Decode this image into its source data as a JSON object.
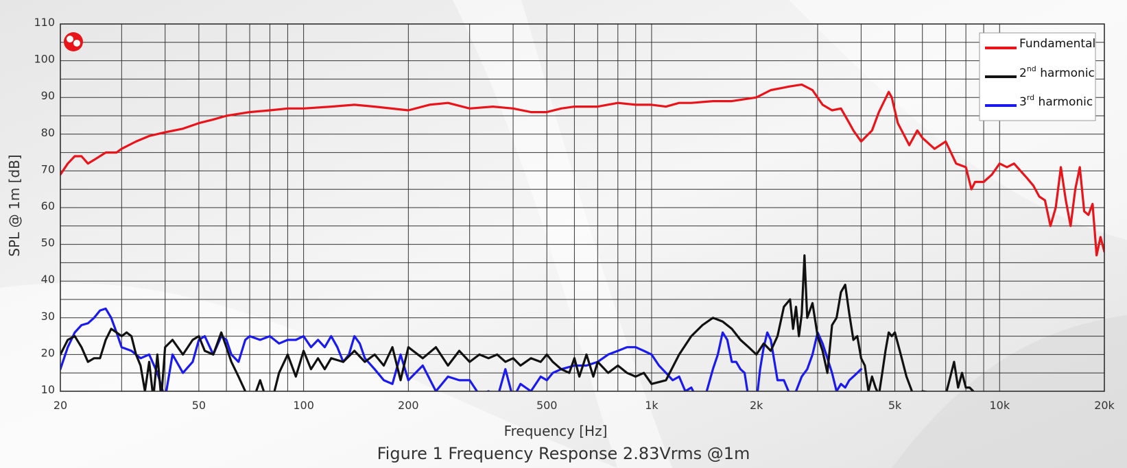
{
  "caption": "Figure 1 Frequency Response 2.83Vrms @1m",
  "chart_data": {
    "type": "line",
    "xlabel": "Frequency [Hz]",
    "ylabel": "SPL @ 1m [dB]",
    "xscale": "log",
    "xlim": [
      20,
      20000
    ],
    "ylim": [
      10,
      110
    ],
    "grid": true,
    "legend_position": "top-right",
    "x_ticks": [
      {
        "value": 20,
        "label": "20"
      },
      {
        "value": 50,
        "label": "50"
      },
      {
        "value": 100,
        "label": "100"
      },
      {
        "value": 200,
        "label": "200"
      },
      {
        "value": 500,
        "label": "500"
      },
      {
        "value": 1000,
        "label": "1k"
      },
      {
        "value": 2000,
        "label": "2k"
      },
      {
        "value": 5000,
        "label": "5k"
      },
      {
        "value": 10000,
        "label": "10k"
      },
      {
        "value": 20000,
        "label": "20k"
      }
    ],
    "y_ticks": [
      10,
      20,
      30,
      40,
      50,
      60,
      70,
      80,
      90,
      100,
      110
    ],
    "series": [
      {
        "name": "Fundamental",
        "legend_label": "Fundamental",
        "color": "#e8141a",
        "x": [
          20,
          21,
          22,
          23,
          24,
          25,
          27,
          29,
          30,
          33,
          36,
          40,
          45,
          50,
          55,
          60,
          70,
          80,
          90,
          100,
          120,
          140,
          160,
          200,
          230,
          260,
          300,
          350,
          400,
          450,
          500,
          550,
          600,
          700,
          800,
          900,
          1000,
          1100,
          1200,
          1300,
          1500,
          1700,
          2000,
          2200,
          2500,
          2700,
          2900,
          3100,
          3300,
          3500,
          3700,
          3800,
          4000,
          4300,
          4500,
          4800,
          4900,
          5100,
          5500,
          5800,
          6000,
          6500,
          7000,
          7500,
          8000,
          8300,
          8500,
          9000,
          9500,
          10000,
          10500,
          11000,
          12000,
          12500,
          13000,
          13500,
          14000,
          14500,
          15000,
          15500,
          16000,
          16500,
          17000,
          17500,
          18000,
          18500,
          19000,
          19500,
          20000
        ],
        "y": [
          69,
          72,
          74,
          74,
          72,
          73,
          75,
          75,
          76,
          78,
          79.5,
          80.5,
          81.5,
          83,
          84,
          85,
          86,
          86.5,
          87,
          87,
          87.5,
          88,
          87.5,
          86.5,
          88,
          88.5,
          87,
          87.5,
          87,
          86,
          86,
          87,
          87.5,
          87.5,
          88.5,
          88,
          88,
          87.5,
          88.5,
          88.5,
          89,
          89,
          90,
          92,
          93,
          93.5,
          92,
          88,
          86.5,
          87,
          83,
          81,
          78,
          81,
          86,
          91.5,
          90,
          83,
          77,
          81,
          79,
          76,
          78,
          72,
          71,
          65,
          67,
          67,
          69,
          72,
          71,
          72,
          68,
          66,
          63,
          62,
          55,
          60,
          71,
          62,
          55,
          65,
          71,
          59,
          58,
          61,
          47,
          52,
          48
        ]
      },
      {
        "name": "2nd harmonic",
        "legend_label": "2",
        "legend_sup": "nd",
        "legend_suffix": " harmonic",
        "color": "#111111",
        "x": [
          20,
          21,
          22,
          23,
          24,
          25,
          26,
          27,
          28,
          29,
          30,
          31,
          32,
          33,
          34,
          35,
          36,
          37,
          38,
          39,
          40,
          42,
          45,
          48,
          50,
          52,
          55,
          58,
          60,
          62,
          65,
          68,
          70,
          75,
          80,
          85,
          90,
          95,
          100,
          105,
          110,
          115,
          120,
          130,
          140,
          150,
          160,
          170,
          180,
          190,
          200,
          220,
          240,
          260,
          280,
          300,
          320,
          340,
          360,
          380,
          400,
          420,
          450,
          480,
          500,
          520,
          550,
          580,
          600,
          620,
          650,
          680,
          700,
          750,
          800,
          850,
          900,
          950,
          1000,
          1100,
          1200,
          1300,
          1400,
          1500,
          1600,
          1700,
          1800,
          1900,
          2000,
          2100,
          2200,
          2300,
          2400,
          2500,
          2550,
          2600,
          2650,
          2700,
          2750,
          2800,
          2900,
          3000,
          3100,
          3200,
          3300,
          3400,
          3500,
          3600,
          3700,
          3800,
          3900,
          4000,
          4100,
          4200,
          4300,
          4400,
          4500,
          4600,
          4700,
          4800,
          4900,
          5000,
          5200,
          5400,
          5600,
          5800,
          6000,
          7000,
          7400,
          7600,
          7800,
          8000,
          8200,
          8400
        ],
        "y": [
          20,
          24,
          25,
          22,
          18,
          19,
          19,
          24,
          27,
          26,
          25,
          26,
          25,
          20,
          17,
          10,
          18,
          8,
          20,
          8,
          22,
          24,
          20,
          24,
          25,
          21,
          20,
          26,
          22,
          18,
          14,
          10,
          5,
          13,
          5,
          15,
          20,
          14,
          21,
          16,
          19,
          16,
          19,
          18,
          21,
          18,
          20,
          17,
          22,
          13,
          22,
          19,
          22,
          17,
          21,
          18,
          20,
          19,
          20,
          18,
          19,
          17,
          19,
          18,
          20,
          18,
          16,
          15,
          19,
          14,
          20,
          14,
          18,
          15,
          17,
          15,
          14,
          15,
          12,
          13,
          20,
          25,
          28,
          30,
          29,
          27,
          24,
          22,
          20,
          23,
          21,
          25,
          33,
          35,
          27,
          33,
          25,
          31,
          47,
          30,
          34,
          25,
          21,
          15,
          28,
          30,
          37,
          39,
          31,
          24,
          25,
          19,
          17,
          10,
          14,
          11,
          9,
          15,
          21,
          26,
          25,
          26,
          20,
          14,
          10,
          8,
          10,
          9,
          18,
          11,
          15,
          11,
          11,
          10
        ]
      },
      {
        "name": "3rd harmonic",
        "legend_label": "3",
        "legend_sup": "rd",
        "legend_suffix": " harmonic",
        "color": "#1a1aee",
        "x": [
          20,
          21,
          22,
          23,
          24,
          25,
          26,
          27,
          28,
          29,
          30,
          32,
          34,
          36,
          38,
          40,
          42,
          45,
          48,
          50,
          52,
          55,
          58,
          60,
          62,
          65,
          68,
          70,
          75,
          80,
          85,
          90,
          95,
          100,
          105,
          110,
          115,
          120,
          125,
          130,
          135,
          140,
          145,
          150,
          160,
          170,
          180,
          190,
          200,
          220,
          240,
          260,
          280,
          300,
          320,
          340,
          360,
          380,
          400,
          420,
          450,
          480,
          500,
          520,
          550,
          600,
          650,
          700,
          750,
          800,
          850,
          900,
          950,
          1000,
          1050,
          1100,
          1150,
          1200,
          1250,
          1300,
          1350,
          1400,
          1450,
          1500,
          1550,
          1600,
          1650,
          1700,
          1750,
          1800,
          1850,
          1900,
          1950,
          2000,
          2050,
          2100,
          2150,
          2200,
          2300,
          2400,
          2500,
          2600,
          2700,
          2800,
          2900,
          3000,
          3100,
          3200,
          3300,
          3400,
          3500,
          3600,
          3700,
          3800,
          3900,
          4000
        ],
        "y": [
          16,
          22,
          26,
          28,
          28.5,
          30,
          32,
          32.5,
          30,
          26,
          22,
          21,
          19,
          20,
          15,
          8,
          20,
          15,
          18,
          24,
          25,
          20,
          25,
          24,
          20,
          18,
          24,
          25,
          24,
          25,
          23,
          24,
          24,
          25,
          22,
          24,
          22,
          25,
          22,
          18,
          20,
          25,
          23,
          19,
          16,
          13,
          12,
          20,
          13,
          17,
          10,
          14,
          13,
          13,
          9,
          10,
          8,
          16,
          8,
          12,
          10,
          14,
          13,
          15,
          16,
          17,
          17,
          18,
          20,
          21,
          22,
          22,
          21,
          20,
          17,
          15,
          13,
          14,
          10,
          11,
          8,
          6,
          11,
          16,
          20,
          26,
          24,
          18,
          18,
          16,
          15,
          8,
          6,
          7,
          16,
          22,
          26,
          24,
          13,
          13,
          9,
          10,
          14,
          16,
          20,
          26,
          23,
          19,
          15,
          10,
          12,
          11,
          13,
          14,
          15,
          16
        ]
      }
    ]
  }
}
